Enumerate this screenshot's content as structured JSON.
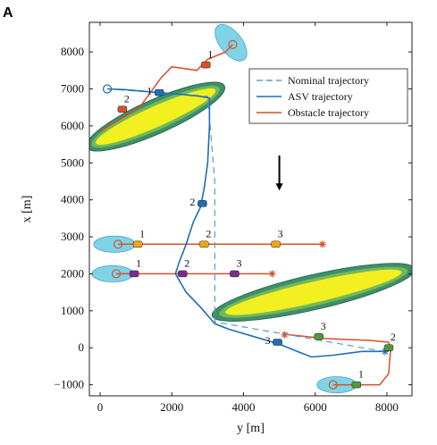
{
  "panel_label": "A",
  "chart_data": {
    "type": "line",
    "xlabel": "y [m]",
    "ylabel": "x [m]",
    "xlim": [
      -300,
      8700
    ],
    "ylim": [
      -1300,
      8800
    ],
    "xticks": [
      0,
      2000,
      4000,
      6000,
      8000
    ],
    "yticks": [
      -1000,
      0,
      1000,
      2000,
      3000,
      4000,
      5000,
      6000,
      7000,
      8000
    ],
    "xtick_labels": [
      "0",
      "2000",
      "4000",
      "6000",
      "8000"
    ],
    "ytick_labels": [
      "−1000",
      "0",
      "1000",
      "2000",
      "3000",
      "4000",
      "5000",
      "6000",
      "7000",
      "8000"
    ],
    "legend": {
      "position": "top-right",
      "entries": [
        {
          "label": "Nominal trajectory",
          "color": "#5b9bd5",
          "style": "dashed"
        },
        {
          "label": "ASV trajectory",
          "color": "#1f6fb2",
          "style": "solid"
        },
        {
          "label": "Obstacle trajectory",
          "color": "#d6502a",
          "style": "solid"
        }
      ]
    },
    "colors": {
      "asv": "#1f6fb2",
      "nominal": "#5b9bd5",
      "obstacle": "#d6502a",
      "obstacle_zone": "#7fd3e6",
      "ellipse_outer": "#3f8f6a",
      "ellipse_mid": "#74b85a",
      "ellipse_inner": "#f2f020"
    },
    "series": [
      {
        "name": "Nominal trajectory",
        "points": [
          [
            200,
            7000
          ],
          [
            3000,
            6800
          ],
          [
            3200,
            4500
          ],
          [
            3200,
            700
          ],
          [
            7900,
            -100
          ]
        ]
      },
      {
        "name": "ASV trajectory",
        "points": [
          [
            200,
            7000
          ],
          [
            700,
            6980
          ],
          [
            1600,
            6900
          ],
          [
            2300,
            6850
          ],
          [
            2800,
            6800
          ],
          [
            3050,
            6750
          ],
          [
            3050,
            6000
          ],
          [
            3000,
            5000
          ],
          [
            2900,
            4300
          ],
          [
            2800,
            3800
          ],
          [
            2600,
            3400
          ],
          [
            2400,
            2800
          ],
          [
            2200,
            2300
          ],
          [
            2100,
            2000
          ],
          [
            2400,
            1500
          ],
          [
            2800,
            1100
          ],
          [
            3200,
            650
          ],
          [
            3600,
            500
          ],
          [
            4300,
            300
          ],
          [
            5000,
            100
          ],
          [
            5500,
            -100
          ],
          [
            5900,
            -250
          ],
          [
            6500,
            -200
          ],
          [
            7300,
            -100
          ],
          [
            7950,
            -100
          ]
        ]
      }
    ],
    "obstacles": [
      {
        "path": [
          [
            3700,
            8200
          ],
          [
            3500,
            8000
          ],
          [
            3000,
            7800
          ],
          [
            2700,
            7500
          ],
          [
            2000,
            7600
          ],
          [
            1700,
            7300
          ],
          [
            1100,
            6500
          ],
          [
            0,
            5850
          ]
        ],
        "start": [
          3700,
          8200
        ],
        "ellipse": {
          "cx": 3650,
          "cy": 8250,
          "rx": 600,
          "ry": 300,
          "angle": -52
        },
        "markers": [
          {
            "at": [
              2950,
              7650
            ],
            "label": "1",
            "color": "#d6502a"
          },
          {
            "at": [
              620,
              6450
            ],
            "label": "2",
            "color": "#d6502a"
          }
        ]
      },
      {
        "path": [
          [
            500,
            2800
          ],
          [
            6200,
            2800
          ]
        ],
        "start": [
          500,
          2800
        ],
        "end": [
          6200,
          2800
        ],
        "ellipse": {
          "cx": 400,
          "cy": 2800,
          "rx": 580,
          "ry": 220,
          "angle": 0
        },
        "markers": [
          {
            "at": [
              1050,
              2800
            ],
            "label": "1",
            "color": "#f0a818"
          },
          {
            "at": [
              2900,
              2800
            ],
            "label": "2",
            "color": "#f0a818"
          },
          {
            "at": [
              4900,
              2800
            ],
            "label": "3",
            "color": "#f0a818"
          }
        ]
      },
      {
        "path": [
          [
            450,
            2000
          ],
          [
            4800,
            2000
          ]
        ],
        "start": [
          450,
          2000
        ],
        "end": [
          4800,
          2000
        ],
        "ellipse": {
          "cx": 350,
          "cy": 2000,
          "rx": 580,
          "ry": 220,
          "angle": 0
        },
        "markers": [
          {
            "at": [
              950,
              2000
            ],
            "label": "1",
            "color": "#7b2d8e"
          },
          {
            "at": [
              2300,
              2000
            ],
            "label": "2",
            "color": "#7b2d8e"
          },
          {
            "at": [
              3750,
              2000
            ],
            "label": "3",
            "color": "#7b2d8e"
          }
        ]
      },
      {
        "path": [
          [
            6500,
            -1000
          ],
          [
            7100,
            -1000
          ],
          [
            7800,
            -1000
          ],
          [
            8050,
            -700
          ],
          [
            8100,
            -100
          ],
          [
            8050,
            150
          ],
          [
            7500,
            200
          ],
          [
            6300,
            250
          ],
          [
            5300,
            350
          ],
          [
            5100,
            400
          ]
        ],
        "start": [
          6500,
          -1000
        ],
        "end": [
          5150,
          350
        ],
        "ellipse": {
          "cx": 6600,
          "cy": -1000,
          "rx": 550,
          "ry": 220,
          "angle": 0
        },
        "markers": [
          {
            "at": [
              7150,
              -1000
            ],
            "label": "1",
            "color": "#4d9b3a"
          },
          {
            "at": [
              8050,
              0
            ],
            "label": "2",
            "color": "#4d9b3a"
          },
          {
            "at": [
              6100,
              300
            ],
            "label": "3",
            "color": "#4d9b3a"
          }
        ]
      }
    ],
    "asv_markers": [
      {
        "at": [
          1650,
          6900
        ],
        "label": "1",
        "color": "#1f6fb2"
      },
      {
        "at": [
          2850,
          3900
        ],
        "label": "2",
        "color": "#1f6fb2"
      },
      {
        "at": [
          4950,
          150
        ],
        "label": "3",
        "color": "#1f6fb2"
      }
    ],
    "hazard_zones": [
      {
        "cx": 1550,
        "cy": 6250,
        "rx": 2100,
        "ry": 460,
        "angle": 24
      },
      {
        "cx": 5950,
        "cy": 1500,
        "rx": 2900,
        "ry": 470,
        "angle": 13
      }
    ],
    "annotation_arrow": {
      "from": [
        5000,
        5200
      ],
      "to": [
        5000,
        4250
      ]
    }
  }
}
